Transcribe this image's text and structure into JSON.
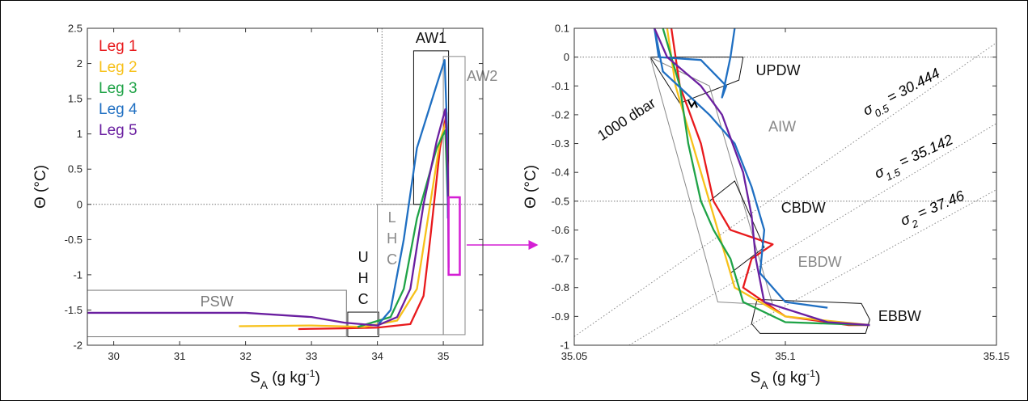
{
  "chart_data": [
    {
      "type": "line",
      "xlabel": {
        "symbol": "S",
        "sub": "A",
        "text": " (g kg",
        "sup": "-1",
        "end": ")"
      },
      "ylabel": "Θ (°C)",
      "xlim": [
        29.6,
        35.6
      ],
      "ylim": [
        -2,
        2.5
      ],
      "xticks": [
        30,
        31,
        32,
        33,
        34,
        35
      ],
      "yticks": [
        -2,
        -1.5,
        -1,
        -0.5,
        0,
        0.5,
        1,
        1.5,
        2,
        2.5
      ],
      "hlines": [
        0
      ],
      "vlines": [
        34.07
      ],
      "legend": "upper left",
      "series": [
        {
          "name": "Leg 1",
          "color": "#e8191c",
          "x": [
            32.8,
            33.5,
            34.0,
            34.5,
            34.7,
            34.8,
            34.95,
            35.05,
            35.08
          ],
          "values": [
            -1.77,
            -1.76,
            -1.75,
            -1.7,
            -1.3,
            -0.5,
            0.8,
            1.3,
            0.0
          ]
        },
        {
          "name": "Leg 2",
          "color": "#f7c11a",
          "x": [
            31.9,
            33.0,
            33.8,
            34.3,
            34.6,
            34.75,
            34.95,
            35.05,
            35.08
          ],
          "values": [
            -1.73,
            -1.72,
            -1.74,
            -1.65,
            -1.2,
            -0.3,
            0.9,
            1.2,
            0.0
          ]
        },
        {
          "name": "Leg 3",
          "color": "#1fa347",
          "x": [
            33.7,
            34.2,
            34.4,
            34.6,
            34.9,
            35.03,
            35.07
          ],
          "values": [
            -1.74,
            -1.6,
            -1.2,
            -0.2,
            0.8,
            1.05,
            0.0
          ]
        },
        {
          "name": "Leg 4",
          "color": "#1f6fc2",
          "x": [
            34.0,
            34.2,
            34.4,
            34.6,
            34.9,
            35.02,
            35.06,
            35.07
          ],
          "values": [
            -1.72,
            -1.5,
            -0.5,
            0.8,
            1.7,
            2.05,
            1.0,
            -0.2
          ]
        },
        {
          "name": "Leg 5",
          "color": "#6a1fa0",
          "x": [
            29.6,
            31.0,
            32.0,
            33.0,
            33.5,
            34.0,
            34.3,
            34.5,
            34.7,
            34.9,
            35.03,
            35.07,
            35.08
          ],
          "values": [
            -1.54,
            -1.54,
            -1.54,
            -1.6,
            -1.68,
            -1.72,
            -1.6,
            -1.2,
            0.0,
            0.9,
            1.35,
            0.5,
            -0.9
          ]
        }
      ],
      "boxes": [
        {
          "label": [
            "PSW"
          ],
          "color": "#777777",
          "x": [
            29.6,
            33.53
          ],
          "y": [
            -1.88,
            -1.22
          ]
        },
        {
          "label": [
            "U",
            "H",
            "C"
          ],
          "color": "#111111",
          "x": [
            33.55,
            34.02
          ],
          "y": [
            -1.88,
            -1.53
          ]
        },
        {
          "label": [
            "L",
            "H",
            "C"
          ],
          "color": "#888888",
          "x": [
            34.0,
            35.0
          ],
          "y": [
            -1.85,
            0.0
          ]
        },
        {
          "label": [
            "AW1"
          ],
          "color": "#111111",
          "x": [
            34.55,
            35.08
          ],
          "y": [
            0.0,
            2.18
          ]
        },
        {
          "label": [
            "AW2"
          ],
          "color": "#888888",
          "x": [
            35.0,
            35.33
          ],
          "y": [
            -1.85,
            2.1
          ]
        }
      ],
      "zoom_box": {
        "color": "#d41fd4",
        "x": [
          35.08,
          35.25
        ],
        "y": [
          -1.0,
          0.1
        ]
      }
    },
    {
      "type": "line",
      "xlabel": {
        "symbol": "S",
        "sub": "A",
        "text": " (g kg",
        "sup": "-1",
        "end": ")"
      },
      "ylabel": "Θ (°C)",
      "xlim": [
        35.05,
        35.15
      ],
      "ylim": [
        -1,
        0.1
      ],
      "xticks": [
        35.05,
        35.1,
        35.15
      ],
      "yticks": [
        -1,
        -0.9,
        -0.8,
        -0.7,
        -0.6,
        -0.5,
        -0.4,
        -0.3,
        -0.2,
        -0.1,
        0,
        0.1
      ],
      "hlines": [
        0,
        -0.5
      ],
      "series": [
        {
          "name": "Leg 1",
          "color": "#e8191c",
          "x": [
            35.073,
            35.075,
            35.08,
            35.083,
            35.087,
            35.097,
            35.092,
            35.09,
            35.1,
            35.115,
            35.12
          ],
          "values": [
            0.1,
            -0.1,
            -0.3,
            -0.5,
            -0.6,
            -0.65,
            -0.7,
            -0.8,
            -0.9,
            -0.93,
            -0.93
          ]
        },
        {
          "name": "Leg 2",
          "color": "#f7c11a",
          "x": [
            35.072,
            35.074,
            35.078,
            35.082,
            35.086,
            35.088,
            35.1,
            35.12
          ],
          "values": [
            0.1,
            -0.1,
            -0.3,
            -0.5,
            -0.7,
            -0.8,
            -0.9,
            -0.93
          ]
        },
        {
          "name": "Leg 3",
          "color": "#1fa347",
          "x": [
            35.071,
            35.075,
            35.077,
            35.08,
            35.083,
            35.087,
            35.09,
            35.1,
            35.12
          ],
          "values": [
            0.1,
            -0.1,
            -0.3,
            -0.5,
            -0.6,
            -0.7,
            -0.85,
            -0.92,
            -0.93
          ]
        },
        {
          "name": "Leg 4",
          "color": "#1f6fc2",
          "x": [
            35.088,
            35.087,
            35.085,
            35.086,
            35.08,
            35.07,
            35.069,
            35.071,
            35.082,
            35.088,
            35.092,
            35.095,
            35.094,
            35.1,
            35.11
          ],
          "values": [
            0.1,
            0.0,
            -0.14,
            -0.1,
            -0.01,
            0.0,
            0.1,
            -0.05,
            -0.2,
            -0.3,
            -0.45,
            -0.6,
            -0.75,
            -0.85,
            -0.87
          ]
        },
        {
          "name": "Leg 5",
          "color": "#6a1fa0",
          "x": [
            35.069,
            35.072,
            35.08,
            35.085,
            35.09,
            35.092,
            35.093,
            35.095,
            35.11,
            35.12
          ],
          "values": [
            0.1,
            0.0,
            -0.1,
            -0.2,
            -0.4,
            -0.55,
            -0.7,
            -0.85,
            -0.92,
            -0.93
          ]
        }
      ],
      "regions": [
        {
          "label": "UPDW",
          "color": "#111111",
          "x": [
            35.068,
            35.09,
            35.089,
            35.075
          ],
          "y": [
            0,
            0,
            -0.08,
            -0.16
          ]
        },
        {
          "label": "AIW",
          "color": "#888888",
          "x": [
            35.068,
            35.082,
            35.097,
            35.084
          ],
          "y": [
            0,
            -0.1,
            -0.86,
            -0.85
          ]
        },
        {
          "label": "CBDW",
          "color": "#111111",
          "x": [
            35.082,
            35.088,
            35.095,
            35.087
          ],
          "y": [
            -0.5,
            -0.43,
            -0.66,
            -0.75
          ]
        },
        {
          "label": "EBDW",
          "color": "#888888",
          "x": [],
          "y": []
        },
        {
          "label": "EBBW",
          "color": "#111111",
          "x": [
            35.0933,
            35.118,
            35.12,
            35.119,
            35.094,
            35.092
          ],
          "y": [
            -0.841,
            -0.855,
            -0.911,
            -0.959,
            -0.959,
            -0.925
          ]
        }
      ],
      "annotation": "1000 dbar",
      "isopycnals": [
        {
          "symbol": "σ",
          "sub": "0.5",
          "text": " = 30.444",
          "x": [
            35.05,
            35.15
          ],
          "y": [
            -0.97,
            0.05
          ]
        },
        {
          "symbol": "σ",
          "sub": "1.5",
          "text": " = 35.142",
          "x": [
            35.063,
            35.15
          ],
          "y": [
            -1,
            -0.23
          ]
        },
        {
          "symbol": "σ",
          "sub": "2",
          "text": " = 37.46",
          "x": [
            35.083,
            35.15
          ],
          "y": [
            -1,
            -0.46
          ]
        }
      ]
    }
  ]
}
